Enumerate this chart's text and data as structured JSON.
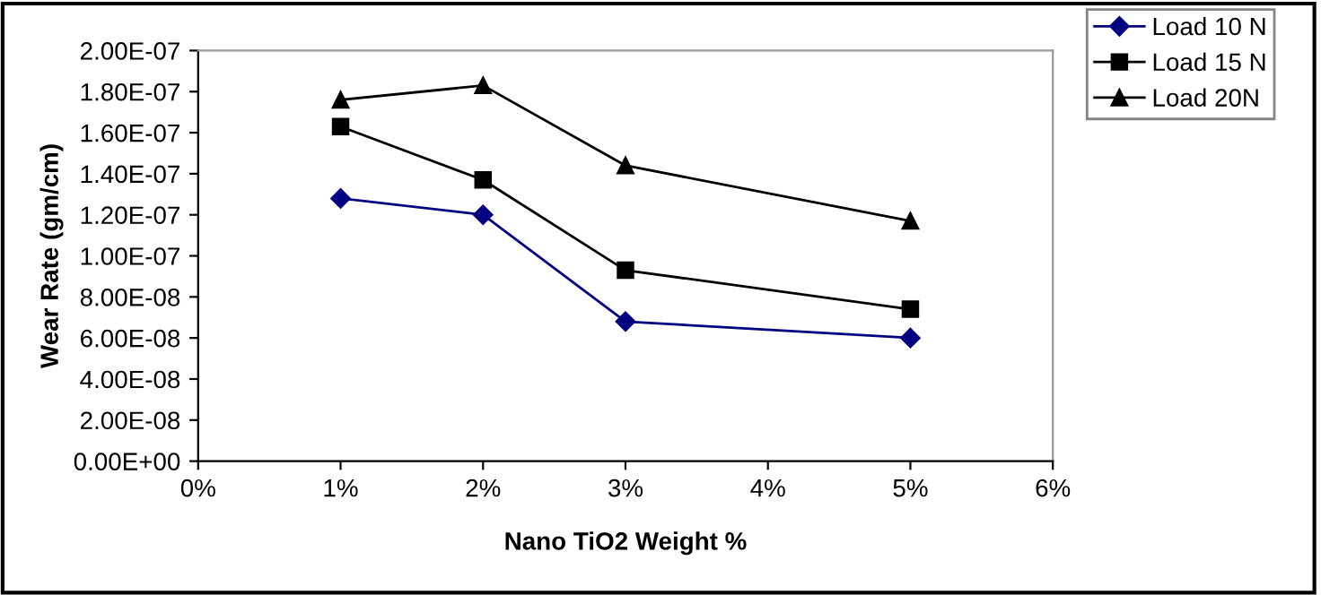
{
  "chart_data": {
    "type": "line",
    "xlabel": "Nano TiO2 Weight %",
    "ylabel": "Wear Rate (gm/cm)",
    "x": [
      1,
      2,
      3,
      5
    ],
    "series": [
      {
        "name": "Load 10 N",
        "color": "#000080",
        "marker": "diamond",
        "values": [
          1.28e-07,
          1.2e-07,
          6.8e-08,
          6e-08
        ]
      },
      {
        "name": "Load 15 N",
        "color": "#000000",
        "marker": "square",
        "values": [
          1.63e-07,
          1.37e-07,
          9.3e-08,
          7.4e-08
        ]
      },
      {
        "name": "Load 20N",
        "color": "#000000",
        "marker": "triangle",
        "values": [
          1.76e-07,
          1.83e-07,
          1.44e-07,
          1.17e-07
        ]
      }
    ],
    "xlim": [
      0,
      6
    ],
    "xticks": [
      {
        "value": 0,
        "label": "0%"
      },
      {
        "value": 1,
        "label": "1%"
      },
      {
        "value": 2,
        "label": "2%"
      },
      {
        "value": 3,
        "label": "3%"
      },
      {
        "value": 4,
        "label": "4%"
      },
      {
        "value": 5,
        "label": "5%"
      },
      {
        "value": 6,
        "label": "6%"
      }
    ],
    "ylim": [
      0,
      2e-07
    ],
    "yticks": [
      {
        "value": 0,
        "label": "0.00E+00"
      },
      {
        "value": 2e-08,
        "label": "2.00E-08"
      },
      {
        "value": 4e-08,
        "label": "4.00E-08"
      },
      {
        "value": 6e-08,
        "label": "6.00E-08"
      },
      {
        "value": 8e-08,
        "label": "8.00E-08"
      },
      {
        "value": 1e-07,
        "label": "1.00E-07"
      },
      {
        "value": 1.2e-07,
        "label": "1.20E-07"
      },
      {
        "value": 1.4e-07,
        "label": "1.40E-07"
      },
      {
        "value": 1.6e-07,
        "label": "1.60E-07"
      },
      {
        "value": 1.8e-07,
        "label": "1.80E-07"
      },
      {
        "value": 2e-07,
        "label": "2.00E-07"
      }
    ],
    "grid": false,
    "legend": "top right",
    "line_style": "solid"
  }
}
